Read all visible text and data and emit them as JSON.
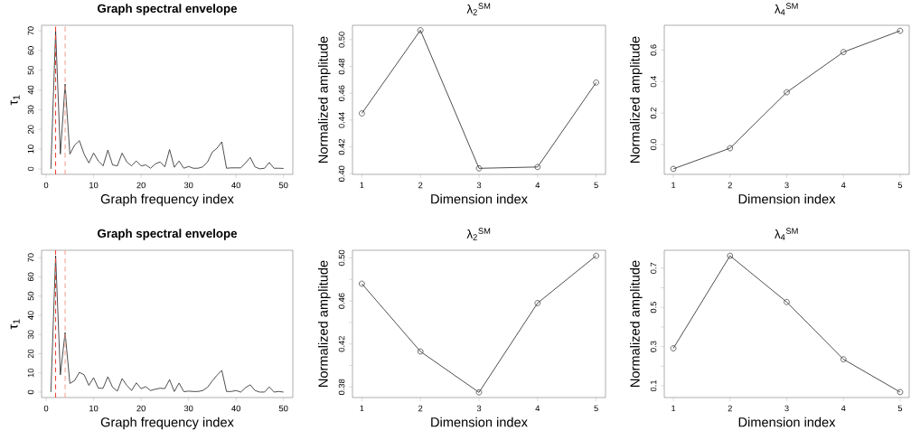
{
  "chart_data": [
    {
      "type": "line",
      "title": "Graph spectral envelope",
      "xlabel": "Graph frequency index",
      "ylabel": "τ$_{1}$",
      "color": "#222222",
      "x": [
        1,
        2,
        3,
        4,
        5,
        6,
        7,
        8,
        9,
        10,
        11,
        12,
        13,
        14,
        15,
        16,
        17,
        18,
        19,
        20,
        21,
        22,
        23,
        24,
        25,
        26,
        27,
        28,
        29,
        30,
        31,
        32,
        33,
        34,
        35,
        36,
        37,
        38,
        39,
        40,
        41,
        42,
        43,
        44,
        45,
        46,
        47,
        48,
        49,
        50
      ],
      "values": [
        0,
        70,
        7.5,
        43,
        7.5,
        12,
        14.3,
        7.5,
        3,
        8,
        4,
        1.5,
        9.5,
        2,
        1.5,
        8,
        3.5,
        1.5,
        4,
        1.5,
        2,
        0.3,
        2.5,
        3.5,
        1,
        9.8,
        0.8,
        4,
        0.3,
        1.2,
        0.3,
        0.3,
        1,
        3.5,
        8.5,
        10.5,
        13.7,
        0.3,
        0.5,
        0.5,
        0.5,
        3,
        5.8,
        1,
        0,
        0.3,
        3.2,
        0.3,
        0.3,
        0.2
      ],
      "xlim": [
        -0.96,
        51.96
      ],
      "ylim": [
        -2.8,
        72.8
      ],
      "xticks": [
        0,
        10,
        20,
        30,
        40,
        50
      ],
      "yticks": [
        0,
        10,
        20,
        30,
        40,
        50,
        60,
        70
      ],
      "ref_lines": [
        {
          "axis": "x",
          "value": 2,
          "color": "#e8432f",
          "line_style": "dashed"
        },
        {
          "axis": "x",
          "value": 4,
          "color": "#f2a08f",
          "line_style": "dashed"
        }
      ]
    },
    {
      "type": "line",
      "title": "λ$_{2}$$^{SM}$",
      "xlabel": "Dimension index",
      "ylabel": "Normalized amplitude",
      "color": "#222222",
      "marker": "circle",
      "x": [
        1,
        2,
        3,
        4,
        5
      ],
      "values": [
        0.445,
        0.507,
        0.404,
        0.405,
        0.468
      ],
      "xlim": [
        0.84,
        5.16
      ],
      "ylim": [
        0.3995,
        0.5107
      ],
      "xticks": [
        1,
        2,
        3,
        4,
        5
      ],
      "yticks": [
        {
          "value": 0.4,
          "label": "0.40"
        },
        0.42,
        0.44,
        0.46,
        0.48,
        {
          "value": 0.5,
          "label": "0.50"
        }
      ]
    },
    {
      "type": "line",
      "title": "λ$_{4}$$^{SM}$",
      "xlabel": "Dimension index",
      "ylabel": "Normalized amplitude",
      "color": "#222222",
      "marker": "circle",
      "x": [
        1,
        2,
        3,
        4,
        5
      ],
      "values": [
        -0.154,
        -0.023,
        0.332,
        0.587,
        0.722
      ],
      "xlim": [
        0.84,
        5.16
      ],
      "ylim": [
        -0.189,
        0.757
      ],
      "xticks": [
        1,
        2,
        3,
        4,
        5
      ],
      "yticks": [
        {
          "value": 0,
          "label": "0.0"
        },
        0.2,
        0.4,
        0.6
      ]
    },
    {
      "type": "line",
      "title": "Graph spectral envelope",
      "xlabel": "Graph frequency index",
      "ylabel": "τ$_{1}$",
      "color": "#222222",
      "x": [
        1,
        2,
        3,
        4,
        5,
        6,
        7,
        8,
        9,
        10,
        11,
        12,
        13,
        14,
        15,
        16,
        17,
        18,
        19,
        20,
        21,
        22,
        23,
        24,
        25,
        26,
        27,
        28,
        29,
        30,
        31,
        32,
        33,
        34,
        35,
        36,
        37,
        38,
        39,
        40,
        41,
        42,
        43,
        44,
        45,
        46,
        47,
        48,
        49,
        50
      ],
      "values": [
        0,
        71,
        9,
        31,
        4.5,
        6,
        10.3,
        9,
        3.5,
        7.5,
        2,
        2,
        8,
        2.5,
        0.5,
        7,
        3.5,
        0.8,
        4.8,
        1.8,
        2.8,
        0.8,
        1.5,
        2,
        1.8,
        6.5,
        0.3,
        4.7,
        0.2,
        0.5,
        0.3,
        0.3,
        0.8,
        2.5,
        5.8,
        8.8,
        11.3,
        0.3,
        0.3,
        0.8,
        0,
        2.3,
        3.8,
        0.8,
        0,
        0,
        2.7,
        0,
        0.3,
        0
      ],
      "xlim": [
        -0.96,
        51.96
      ],
      "ylim": [
        -2.84,
        73.84
      ],
      "xticks": [
        0,
        10,
        20,
        30,
        40,
        50
      ],
      "yticks": [
        0,
        10,
        20,
        30,
        40,
        50,
        60,
        70
      ],
      "ref_lines": [
        {
          "axis": "x",
          "value": 2,
          "color": "#e8432f",
          "line_style": "dashed"
        },
        {
          "axis": "x",
          "value": 4,
          "color": "#f2a08f",
          "line_style": "dashed"
        }
      ]
    },
    {
      "type": "line",
      "title": "λ$_{2}$$^{SM}$",
      "xlabel": "Dimension index",
      "ylabel": "Normalized amplitude",
      "color": "#222222",
      "marker": "circle",
      "x": [
        1,
        2,
        3,
        4,
        5
      ],
      "values": [
        0.476,
        0.413,
        0.375,
        0.458,
        0.502
      ],
      "xlim": [
        0.84,
        5.16
      ],
      "ylim": [
        0.3702,
        0.5071
      ],
      "xticks": [
        1,
        2,
        3,
        4,
        5
      ],
      "yticks": [
        0.38,
        {
          "value": 0.4,
          "label": null
        },
        0.42,
        {
          "value": 0.44,
          "label": null
        },
        0.46,
        {
          "value": 0.48,
          "label": null
        },
        {
          "value": 0.5,
          "label": "0.50"
        }
      ]
    },
    {
      "type": "line",
      "title": "λ$_{4}$$^{SM}$",
      "xlabel": "Dimension index",
      "ylabel": "Normalized amplitude",
      "color": "#222222",
      "marker": "circle",
      "x": [
        1,
        2,
        3,
        4,
        5
      ],
      "values": [
        0.291,
        0.763,
        0.527,
        0.235,
        0.068
      ],
      "xlim": [
        0.84,
        5.16
      ],
      "ylim": [
        0.04,
        0.791
      ],
      "xticks": [
        1,
        2,
        3,
        4,
        5
      ],
      "yticks": [
        0.1,
        {
          "value": 0.2,
          "label": null
        },
        0.3,
        {
          "value": 0.4,
          "label": null
        },
        0.5,
        {
          "value": 0.6,
          "label": null
        },
        0.7
      ]
    }
  ]
}
